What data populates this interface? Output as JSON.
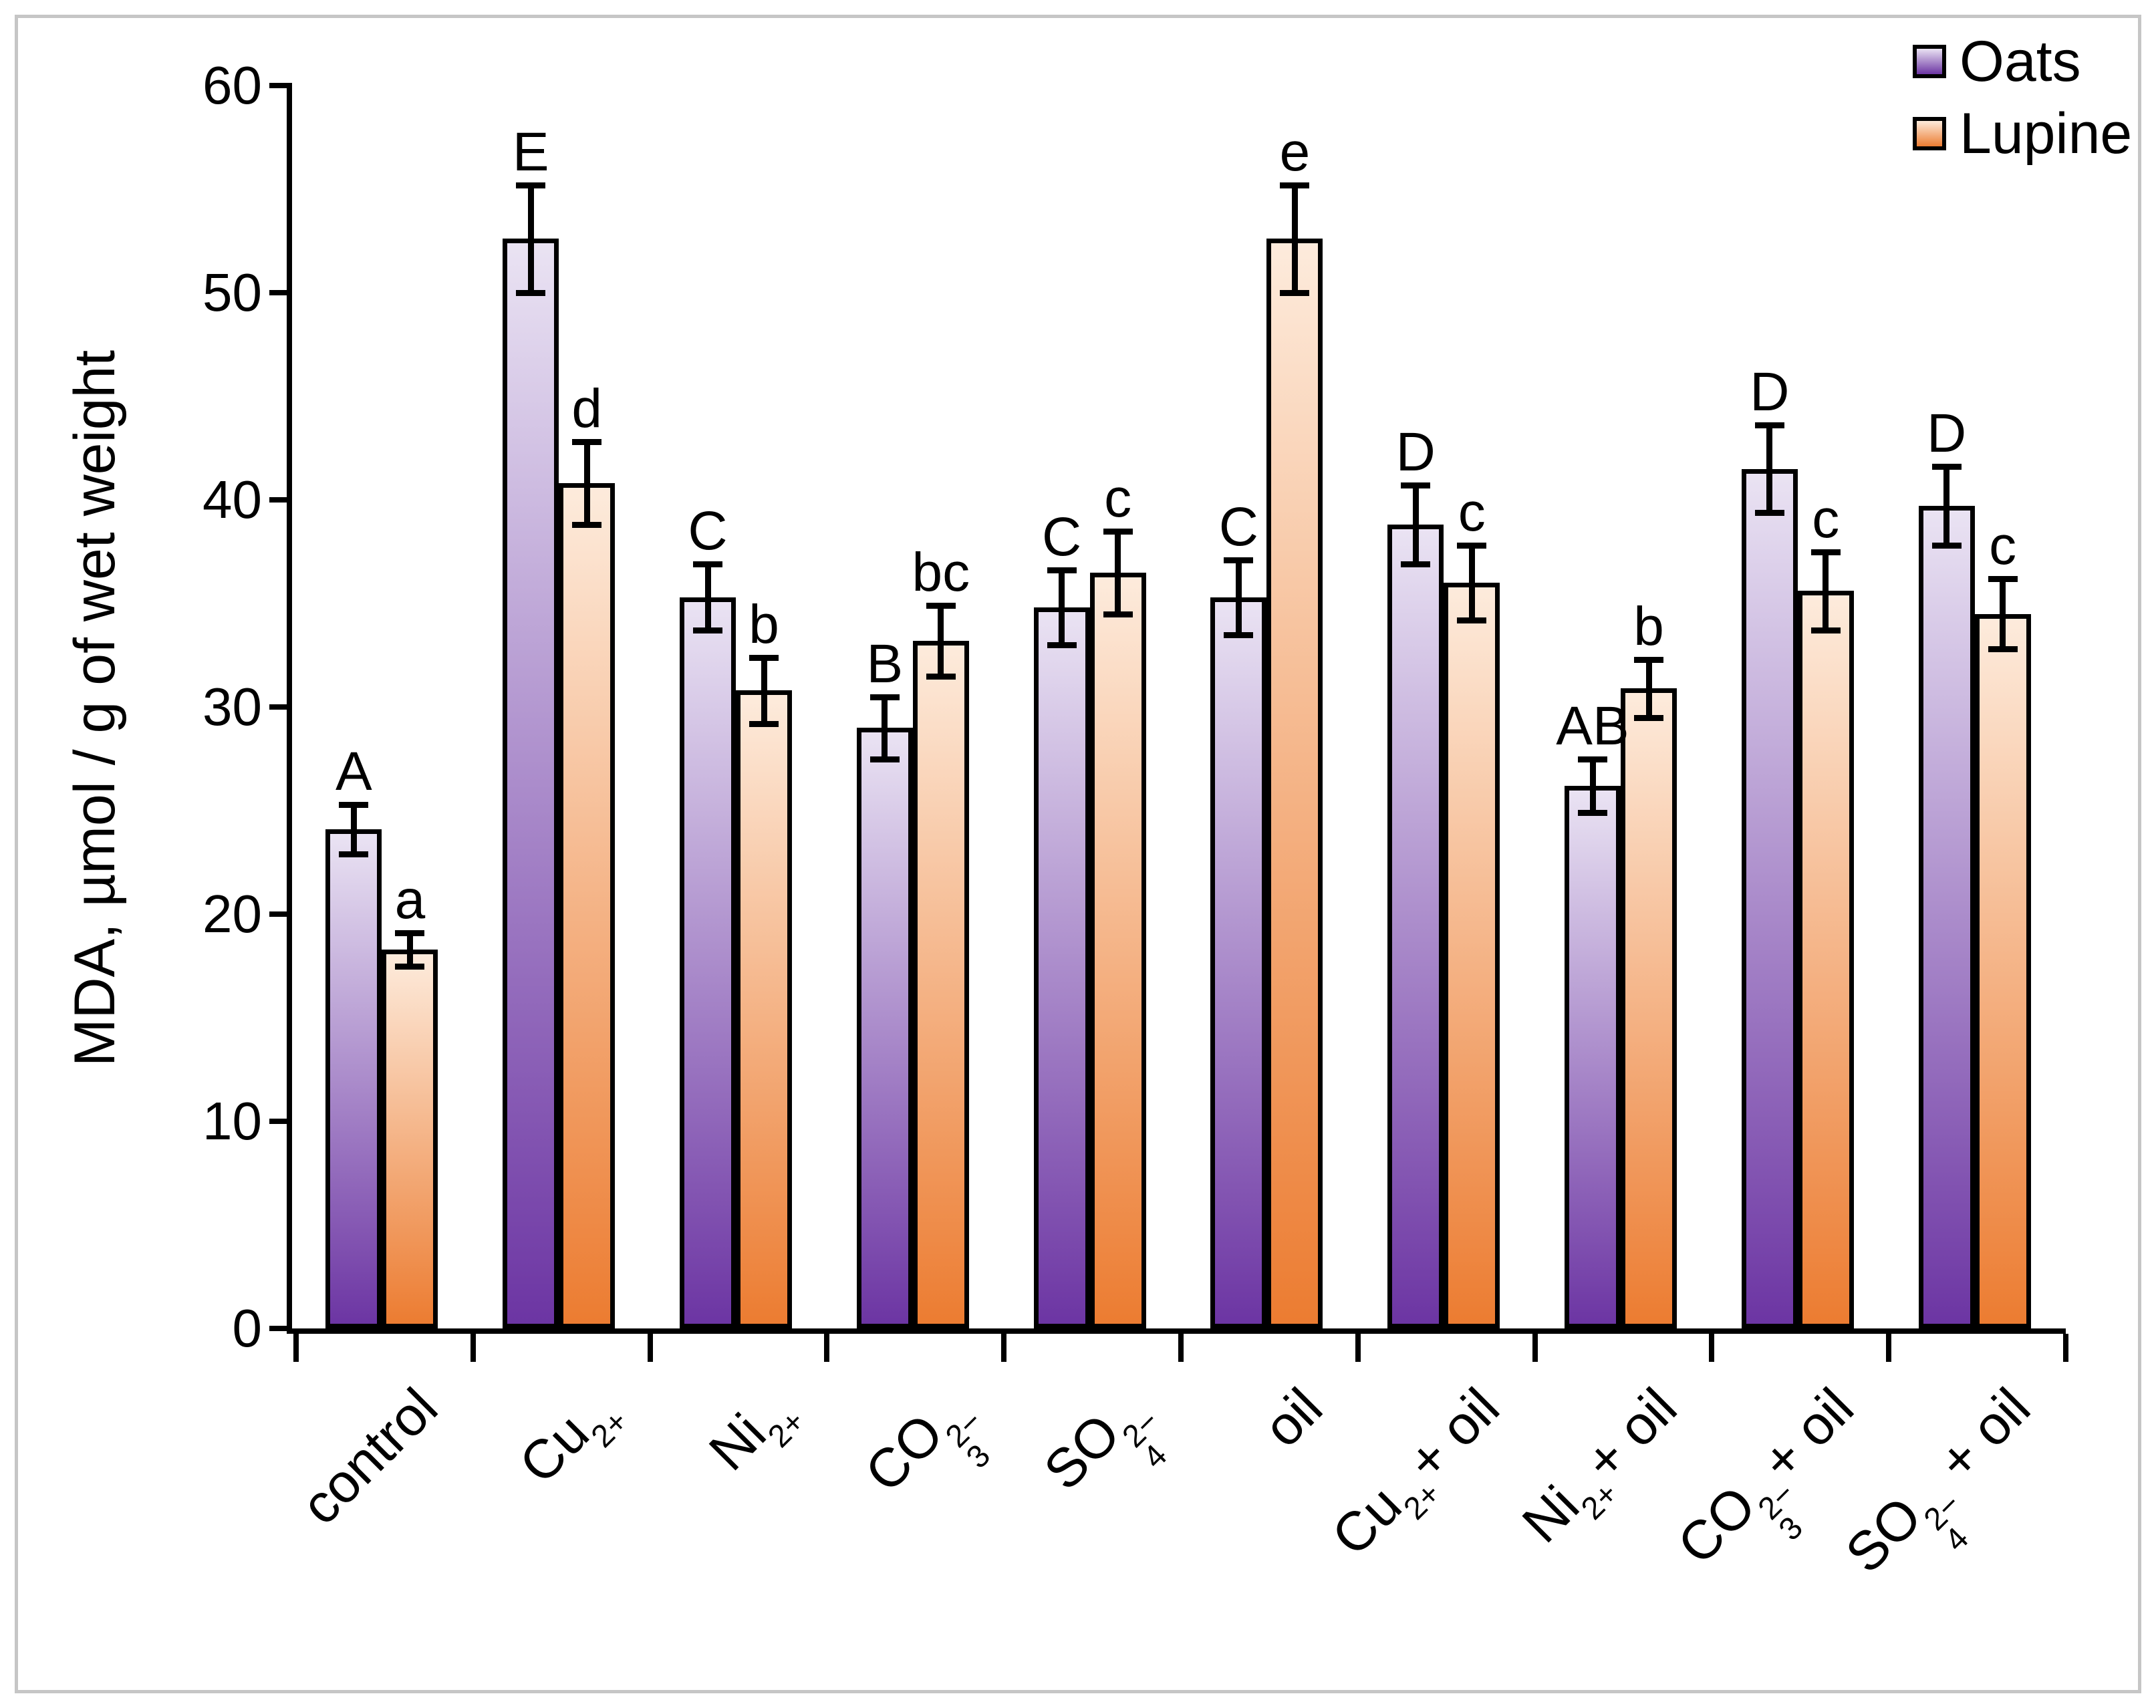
{
  "chart_data": {
    "type": "bar",
    "title": "",
    "xlabel": "",
    "ylabel": "MDA, µmol / g of wet weight",
    "ylim": [
      0,
      60
    ],
    "yticks": [
      0,
      10,
      20,
      30,
      40,
      50,
      60
    ],
    "grid": false,
    "legend_position": "top-right",
    "bar_outline_color": "#000000",
    "categories": [
      "control",
      "Cu²⁺",
      "Ni²⁺",
      "CO₃²⁻",
      "SO₄²⁻",
      "oil",
      "Cu²⁺+ oil",
      "Ni²⁺+ oil",
      "CO₃²⁻+ oil",
      "SO₄²⁻ + oil"
    ],
    "categories_rich": [
      {
        "id": "control",
        "base": "control",
        "sub": "",
        "sup": "",
        "after": ""
      },
      {
        "id": "cu",
        "base": "Cu",
        "sub": "",
        "sup": "2+",
        "after": ""
      },
      {
        "id": "ni",
        "base": "Ni",
        "sub": "",
        "sup": "2+",
        "after": ""
      },
      {
        "id": "co3",
        "base": "CO",
        "sub": "3",
        "sup": "2−",
        "after": ""
      },
      {
        "id": "so4",
        "base": "SO",
        "sub": "4",
        "sup": "2−",
        "after": ""
      },
      {
        "id": "oil",
        "base": "oil",
        "sub": "",
        "sup": "",
        "after": ""
      },
      {
        "id": "cu-oil",
        "base": "Cu",
        "sub": "",
        "sup": "2+",
        "after": "+ oil"
      },
      {
        "id": "ni-oil",
        "base": "Ni",
        "sub": "",
        "sup": "2+",
        "after": "+ oil"
      },
      {
        "id": "co3-oil",
        "base": "CO",
        "sub": "3",
        "sup": "2−",
        "after": "+ oil"
      },
      {
        "id": "so4-oil",
        "base": "SO",
        "sub": "4",
        "sup": "2−",
        "after": " + oil"
      }
    ],
    "series": [
      {
        "name": "Oats",
        "color_top": "#EAE3F3",
        "color_bottom": "#6C35A3",
        "values": [
          24.1,
          52.6,
          35.3,
          29.0,
          34.8,
          35.3,
          38.8,
          26.2,
          41.5,
          39.7
        ],
        "errors": [
          1.2,
          2.6,
          1.6,
          1.5,
          1.8,
          1.8,
          1.9,
          1.3,
          2.1,
          1.9
        ],
        "letters": [
          "A",
          "E",
          "C",
          "B",
          "C",
          "C",
          "D",
          "AB",
          "D",
          "D"
        ]
      },
      {
        "name": "Lupine",
        "color_top": "#FDEBDC",
        "color_bottom": "#EC7C31",
        "values": [
          18.3,
          40.8,
          30.8,
          33.2,
          36.5,
          52.6,
          36.0,
          30.9,
          35.6,
          34.5
        ],
        "errors": [
          0.8,
          2.0,
          1.6,
          1.7,
          2.0,
          2.6,
          1.8,
          1.4,
          1.9,
          1.7
        ],
        "letters": [
          "a",
          "d",
          "b",
          "bc",
          "c",
          "e",
          "c",
          "b",
          "c",
          "c"
        ]
      }
    ]
  },
  "legend": {
    "items": [
      {
        "label": "Oats"
      },
      {
        "label": "Lupine"
      }
    ]
  },
  "axes": {
    "y_title": "MDA, µmol / g of wet weight",
    "y_tick_labels": [
      "0",
      "10",
      "20",
      "30",
      "40",
      "50",
      "60"
    ]
  }
}
